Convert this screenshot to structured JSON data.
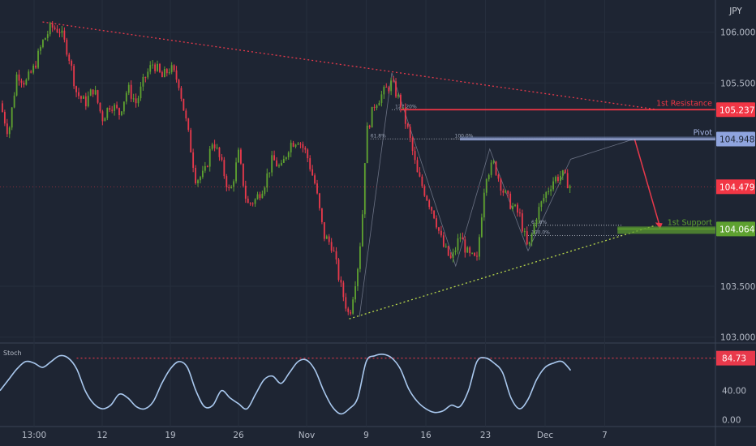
{
  "chart_data": {
    "type": "candlestick",
    "symbol": "JPY",
    "price_axis": {
      "ticks": [
        106.0,
        105.5,
        103.5,
        103.0
      ],
      "tick_labels": [
        "106.000",
        "105.500",
        "103.500",
        "103.000"
      ],
      "range": [
        102.95,
        106.3
      ]
    },
    "time_axis": {
      "labels": [
        "13:00",
        "12",
        "19",
        "26",
        "Nov",
        "9",
        "16",
        "23",
        "Dec",
        "7"
      ],
      "positions": [
        0,
        8,
        16,
        24,
        32,
        39,
        46,
        53,
        60,
        67
      ],
      "range": [
        -4,
        80
      ]
    },
    "levels": [
      {
        "name": "1st Resistance",
        "value": 105.237,
        "label": "105.237",
        "color": "#f23645"
      },
      {
        "name": "Pivot",
        "value": 104.948,
        "label": "104.948",
        "color": "#a9b8e8"
      },
      {
        "name": "1st Support",
        "value": 104.064,
        "label": "104.064",
        "color": "#5ea130"
      }
    ],
    "last_price": {
      "value": 104.479,
      "label": "104.479",
      "color": "#f23645"
    },
    "fib_labels": [
      "61.8%",
      "127.20%",
      "100.0%",
      "61.8%",
      "100.0%"
    ],
    "trendlines": [
      {
        "kind": "resistance",
        "from": [
          1,
          106.1
        ],
        "to": [
          73,
          105.24
        ]
      },
      {
        "kind": "support",
        "from": [
          37,
          103.18
        ],
        "to": [
          73,
          104.1
        ]
      }
    ],
    "projection": [
      [
        70.5,
        104.95
      ],
      [
        73.5,
        104.08
      ]
    ],
    "close_path": [
      [
        -4,
        105.3
      ],
      [
        -3,
        105.0
      ],
      [
        -2,
        105.6
      ],
      [
        -1,
        105.5
      ],
      [
        0,
        105.65
      ],
      [
        1,
        105.9
      ],
      [
        2,
        106.05
      ],
      [
        3,
        106.02
      ],
      [
        4,
        105.8
      ],
      [
        5,
        105.4
      ],
      [
        6,
        105.3
      ],
      [
        7,
        105.45
      ],
      [
        8,
        105.15
      ],
      [
        9,
        105.3
      ],
      [
        10,
        105.2
      ],
      [
        11,
        105.45
      ],
      [
        12,
        105.3
      ],
      [
        13,
        105.55
      ],
      [
        14,
        105.7
      ],
      [
        15,
        105.55
      ],
      [
        16,
        105.65
      ],
      [
        17,
        105.5
      ],
      [
        18,
        105.05
      ],
      [
        19,
        104.55
      ],
      [
        20,
        104.6
      ],
      [
        21,
        104.95
      ],
      [
        22,
        104.7
      ],
      [
        23,
        104.4
      ],
      [
        24,
        104.8
      ],
      [
        25,
        104.3
      ],
      [
        26,
        104.35
      ],
      [
        27,
        104.5
      ],
      [
        28,
        104.75
      ],
      [
        29,
        104.65
      ],
      [
        30,
        104.9
      ],
      [
        31,
        104.95
      ],
      [
        32,
        104.8
      ],
      [
        33,
        104.5
      ],
      [
        34,
        104.0
      ],
      [
        35,
        103.9
      ],
      [
        36,
        103.5
      ],
      [
        37,
        103.2
      ],
      [
        38,
        103.7
      ],
      [
        38.5,
        104.1
      ],
      [
        39,
        105.0
      ],
      [
        40,
        105.3
      ],
      [
        41,
        105.4
      ],
      [
        42,
        105.5
      ],
      [
        43,
        105.3
      ],
      [
        44,
        105.0
      ],
      [
        45,
        104.6
      ],
      [
        46,
        104.4
      ],
      [
        47,
        104.2
      ],
      [
        48,
        103.9
      ],
      [
        49,
        103.75
      ],
      [
        50,
        104.0
      ],
      [
        51,
        103.8
      ],
      [
        52,
        103.75
      ],
      [
        53,
        104.6
      ],
      [
        54,
        104.7
      ],
      [
        55,
        104.45
      ],
      [
        56,
        104.3
      ],
      [
        57,
        104.2
      ],
      [
        58,
        103.85
      ],
      [
        59,
        104.2
      ],
      [
        60,
        104.4
      ],
      [
        61,
        104.55
      ],
      [
        62,
        104.6
      ],
      [
        63,
        104.48
      ]
    ],
    "oscillator": {
      "name": "Stoch",
      "ticks": [
        0,
        40,
        84.73
      ],
      "tick_labels": [
        "0.00",
        "40.00",
        "84.73"
      ],
      "level": 84.73,
      "level_label": "84.73",
      "range": [
        -5,
        100
      ],
      "values": [
        [
          -4,
          40
        ],
        [
          -3,
          55
        ],
        [
          -2,
          70
        ],
        [
          -1,
          80
        ],
        [
          0,
          78
        ],
        [
          1,
          72
        ],
        [
          2,
          80
        ],
        [
          3,
          88
        ],
        [
          4,
          85
        ],
        [
          5,
          70
        ],
        [
          6,
          40
        ],
        [
          7,
          22
        ],
        [
          8,
          15
        ],
        [
          9,
          20
        ],
        [
          10,
          35
        ],
        [
          11,
          30
        ],
        [
          12,
          18
        ],
        [
          13,
          15
        ],
        [
          14,
          25
        ],
        [
          15,
          50
        ],
        [
          16,
          70
        ],
        [
          17,
          80
        ],
        [
          18,
          72
        ],
        [
          19,
          40
        ],
        [
          20,
          18
        ],
        [
          21,
          20
        ],
        [
          22,
          40
        ],
        [
          23,
          30
        ],
        [
          24,
          22
        ],
        [
          25,
          15
        ],
        [
          26,
          35
        ],
        [
          27,
          55
        ],
        [
          28,
          60
        ],
        [
          29,
          50
        ],
        [
          30,
          65
        ],
        [
          31,
          80
        ],
        [
          32,
          82
        ],
        [
          33,
          68
        ],
        [
          34,
          40
        ],
        [
          35,
          18
        ],
        [
          36,
          8
        ],
        [
          37,
          15
        ],
        [
          38,
          30
        ],
        [
          39,
          80
        ],
        [
          40,
          88
        ],
        [
          41,
          90
        ],
        [
          42,
          85
        ],
        [
          43,
          70
        ],
        [
          44,
          42
        ],
        [
          45,
          25
        ],
        [
          46,
          15
        ],
        [
          47,
          10
        ],
        [
          48,
          12
        ],
        [
          49,
          20
        ],
        [
          50,
          18
        ],
        [
          51,
          40
        ],
        [
          52,
          80
        ],
        [
          53,
          85
        ],
        [
          54,
          78
        ],
        [
          55,
          65
        ],
        [
          56,
          30
        ],
        [
          57,
          15
        ],
        [
          58,
          28
        ],
        [
          59,
          55
        ],
        [
          60,
          72
        ],
        [
          61,
          78
        ],
        [
          62,
          80
        ],
        [
          63,
          68
        ]
      ]
    }
  }
}
